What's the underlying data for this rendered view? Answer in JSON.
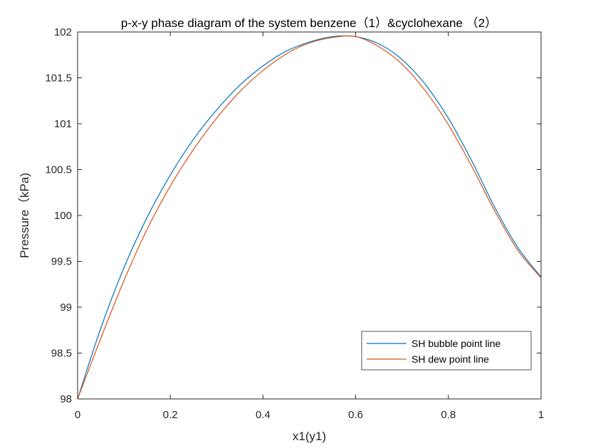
{
  "chart_data": {
    "type": "line",
    "title": "p-x-y phase diagram of the system benzene（1）&cyclohexane （2）",
    "xlabel": "x1(y1)",
    "ylabel": "Pressure（kPa)",
    "xlim": [
      0,
      1
    ],
    "ylim": [
      98,
      102
    ],
    "xticks": [
      0,
      0.2,
      0.4,
      0.6,
      0.8,
      1
    ],
    "xtick_labels": [
      "0",
      "0.2",
      "0.4",
      "0.6",
      "0.8",
      "1"
    ],
    "yticks": [
      98,
      98.5,
      99,
      99.5,
      100,
      100.5,
      101,
      101.5,
      102
    ],
    "ytick_labels": [
      "98",
      "98.5",
      "99",
      "99.5",
      "100",
      "100.5",
      "101",
      "101.5",
      "102"
    ],
    "grid": false,
    "legend_position": "bottom-right",
    "x": [
      0,
      0.05,
      0.1,
      0.15,
      0.2,
      0.25,
      0.3,
      0.35,
      0.4,
      0.45,
      0.5,
      0.55,
      0.6,
      0.65,
      0.7,
      0.75,
      0.8,
      0.85,
      0.9,
      0.95,
      1
    ],
    "series": [
      {
        "name": "SH bubble point line",
        "color": "#0072BD",
        "values": [
          98.0,
          98.77,
          99.43,
          99.98,
          100.44,
          100.83,
          101.15,
          101.42,
          101.63,
          101.79,
          101.89,
          101.95,
          101.95,
          101.87,
          101.7,
          101.43,
          101.06,
          100.6,
          100.09,
          99.65,
          99.33
        ]
      },
      {
        "name": "SH dew point line",
        "color": "#D95319",
        "values": [
          98.0,
          98.66,
          99.29,
          99.85,
          100.32,
          100.72,
          101.06,
          101.35,
          101.58,
          101.76,
          101.88,
          101.94,
          101.95,
          101.84,
          101.65,
          101.36,
          100.99,
          100.54,
          100.05,
          99.62,
          99.32
        ]
      }
    ]
  }
}
